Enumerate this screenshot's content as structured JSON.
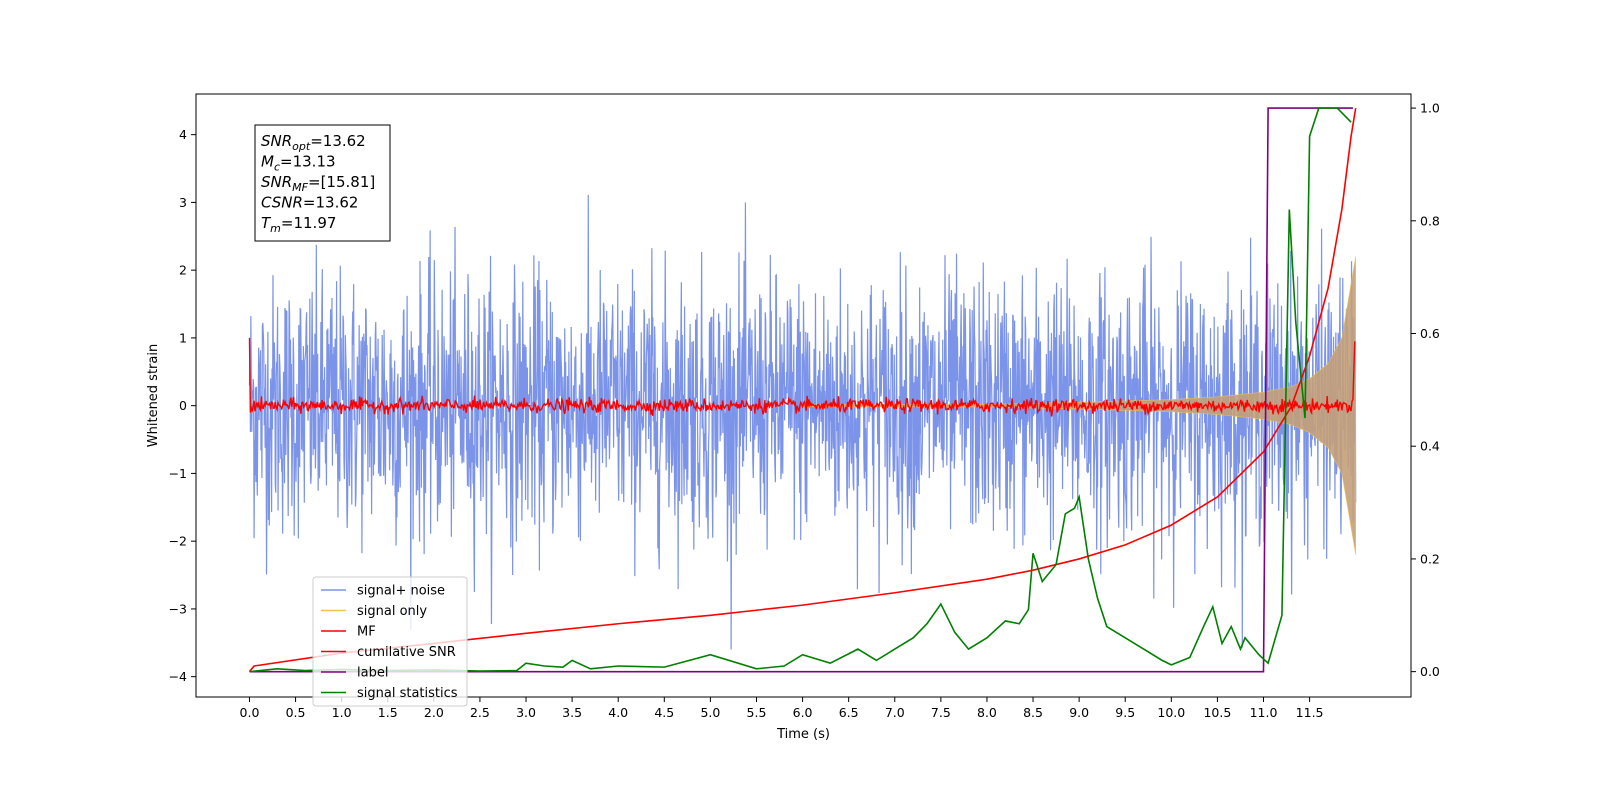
{
  "chart_data": {
    "type": "line",
    "xlabel": "Time (s)",
    "ylabel": "Whitened strain",
    "xlim": [
      -0.58,
      12.6
    ],
    "ylim": [
      -4.3,
      4.6
    ],
    "y2lim": [
      -0.045,
      1.025
    ],
    "xticks": [
      0.0,
      0.5,
      1.0,
      1.5,
      2.0,
      2.5,
      3.0,
      3.5,
      4.0,
      4.5,
      5.0,
      5.5,
      6.0,
      6.5,
      7.0,
      7.5,
      8.0,
      8.5,
      9.0,
      9.5,
      10.0,
      10.5,
      11.0,
      11.5
    ],
    "xtick_labels": [
      "0.0",
      "0.5",
      "1.0",
      "1.5",
      "2.0",
      "2.5",
      "3.0",
      "3.5",
      "4.0",
      "4.5",
      "5.0",
      "5.5",
      "6.0",
      "6.5",
      "7.0",
      "7.5",
      "8.0",
      "8.5",
      "9.0",
      "9.5",
      "10.0",
      "10.5",
      "11.0",
      "11.5"
    ],
    "yticks": [
      -4,
      -3,
      -2,
      -1,
      0,
      1,
      2,
      3,
      4
    ],
    "ytick_labels": [
      "−4",
      "−3",
      "−2",
      "−1",
      "0",
      "1",
      "2",
      "3",
      "4"
    ],
    "y2ticks": [
      0.0,
      0.2,
      0.4,
      0.6,
      0.8,
      1.0
    ],
    "y2tick_labels": [
      "0.0",
      "0.2",
      "0.4",
      "0.6",
      "0.8",
      "1.0"
    ],
    "grid": false,
    "legend_position": "lower-left",
    "series": [
      {
        "name": "signal+ noise",
        "color": "#7b93e8",
        "axis": "left",
        "description": "white noise, roughly ±1 sigma, spikes to about ±3.5, from t=0 to t=12",
        "amplitude_envelope": [
          [
            0.0,
            1.0
          ],
          [
            12.0,
            1.0
          ]
        ]
      },
      {
        "name": "signal only",
        "color": "#f0c14b",
        "axis": "left",
        "description": "chirp whose amplitude grows toward the merger",
        "x": [
          0.0,
          8.0,
          9.0,
          10.0,
          10.5,
          11.0,
          11.3,
          11.5,
          11.7,
          11.85,
          11.95,
          12.0
        ],
        "amplitude": [
          0.0,
          0.02,
          0.05,
          0.09,
          0.13,
          0.2,
          0.28,
          0.4,
          0.62,
          1.0,
          1.8,
          2.2
        ]
      },
      {
        "name": "MF",
        "color": "#ff0000",
        "axis": "left",
        "description": "matched filter output near 0 with small fluctuations (±0.15), spike to 1.0 at t=0"
      },
      {
        "name": "cumilative SNR",
        "color": "#ff0000",
        "axis": "right",
        "x": [
          0.0,
          0.05,
          1.0,
          2.0,
          3.0,
          4.0,
          5.0,
          6.0,
          7.0,
          8.0,
          8.5,
          9.0,
          9.5,
          10.0,
          10.5,
          11.0,
          11.3,
          11.5,
          11.7,
          11.85,
          11.95,
          12.0
        ],
        "y": [
          0.0,
          0.01,
          0.033,
          0.05,
          0.068,
          0.085,
          0.1,
          0.118,
          0.14,
          0.164,
          0.18,
          0.2,
          0.225,
          0.26,
          0.31,
          0.39,
          0.47,
          0.56,
          0.68,
          0.82,
          0.95,
          1.0
        ]
      },
      {
        "name": "label",
        "color": "#800080",
        "axis": "right",
        "x": [
          0.0,
          11.0,
          11.05,
          11.97
        ],
        "y": [
          0.0,
          0.0,
          1.0,
          1.0
        ]
      },
      {
        "name": "signal statistics",
        "color": "#008000",
        "axis": "right",
        "x": [
          0.0,
          0.3,
          0.6,
          1.0,
          1.5,
          2.0,
          2.5,
          2.9,
          3.0,
          3.2,
          3.4,
          3.5,
          3.7,
          4.0,
          4.5,
          5.0,
          5.5,
          5.8,
          6.0,
          6.3,
          6.6,
          6.8,
          7.0,
          7.2,
          7.35,
          7.5,
          7.65,
          7.8,
          8.0,
          8.2,
          8.35,
          8.45,
          8.5,
          8.6,
          8.75,
          8.85,
          8.95,
          9.0,
          9.1,
          9.2,
          9.3,
          9.5,
          9.7,
          9.9,
          10.0,
          10.2,
          10.35,
          10.45,
          10.55,
          10.65,
          10.75,
          10.8,
          10.95,
          11.05,
          11.2,
          11.28,
          11.35,
          11.45,
          11.5,
          11.6,
          11.8,
          11.95
        ],
        "y": [
          0.0,
          0.005,
          0.002,
          0.004,
          0.002,
          0.003,
          0.001,
          0.002,
          0.015,
          0.01,
          0.008,
          0.02,
          0.005,
          0.01,
          0.008,
          0.03,
          0.005,
          0.01,
          0.03,
          0.015,
          0.04,
          0.02,
          0.04,
          0.06,
          0.085,
          0.12,
          0.07,
          0.04,
          0.06,
          0.09,
          0.085,
          0.11,
          0.21,
          0.16,
          0.19,
          0.28,
          0.29,
          0.31,
          0.2,
          0.13,
          0.08,
          0.06,
          0.04,
          0.02,
          0.012,
          0.025,
          0.08,
          0.115,
          0.05,
          0.08,
          0.04,
          0.06,
          0.03,
          0.015,
          0.1,
          0.82,
          0.62,
          0.45,
          0.95,
          1.0,
          1.0,
          0.975
        ]
      }
    ],
    "annotation_box": {
      "lines": [
        {
          "var": "SNR",
          "sub": "opt",
          "value": "=13.62"
        },
        {
          "var": "M",
          "sub": "c",
          "value": "=13.13"
        },
        {
          "var": "SNR",
          "sub": "MF",
          "value": "=[15.81]"
        },
        {
          "var": "CSNR",
          "sub": "",
          "value": "=13.62"
        },
        {
          "var": "T",
          "sub": "m",
          "value": "=11.97"
        }
      ]
    }
  }
}
